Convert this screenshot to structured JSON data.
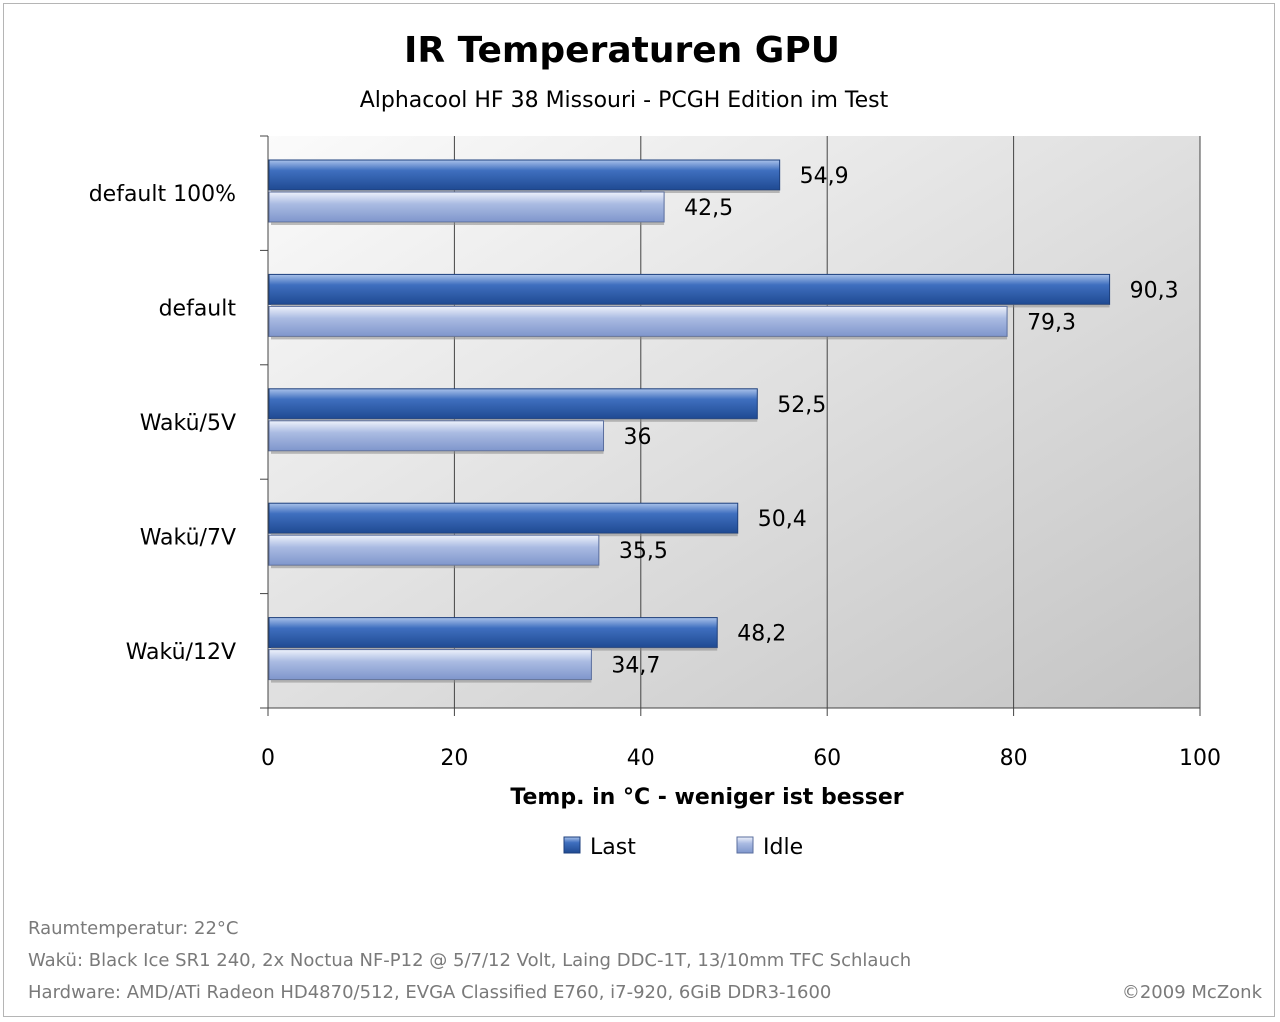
{
  "chart_data": {
    "type": "bar",
    "orientation": "horizontal",
    "title": "IR Temperaturen GPU",
    "subtitle": "Alphacool HF 38 Missouri - PCGH Edition  im Test",
    "categories": [
      "default 100%",
      "default",
      "Wakü/5V",
      "Wakü/7V",
      "Wakü/12V"
    ],
    "series": [
      {
        "name": "Last",
        "values": [
          54.9,
          90.3,
          52.5,
          50.4,
          48.2
        ],
        "labels": [
          "54,9",
          "90,3",
          "52,5",
          "50,4",
          "48,2"
        ],
        "color": "#3464b4"
      },
      {
        "name": "Idle",
        "values": [
          42.5,
          79.3,
          36,
          35.5,
          34.7
        ],
        "labels": [
          "42,5",
          "79,3",
          "36",
          "35,5",
          "34,7"
        ],
        "color": "#9db0dc"
      }
    ],
    "xlabel": "Temp. in °C - weniger ist besser",
    "ylabel": "",
    "xlim": [
      0,
      100
    ],
    "x_ticks": [
      0,
      20,
      40,
      60,
      80,
      100
    ],
    "grid": true,
    "legend_position": "bottom",
    "plot_background": "#d8d8d8"
  },
  "footer": {
    "line1": "Raumtemperatur: 22°C",
    "line2": "Wakü: Black Ice SR1 240, 2x Noctua NF-P12 @ 5/7/12 Volt, Laing DDC-1T, 13/10mm TFC Schlauch",
    "line3": "Hardware: AMD/ATi Radeon HD4870/512, EVGA Classified E760, i7-920, 6GiB DDR3-1600",
    "copyright": "©2009 McZonk"
  }
}
